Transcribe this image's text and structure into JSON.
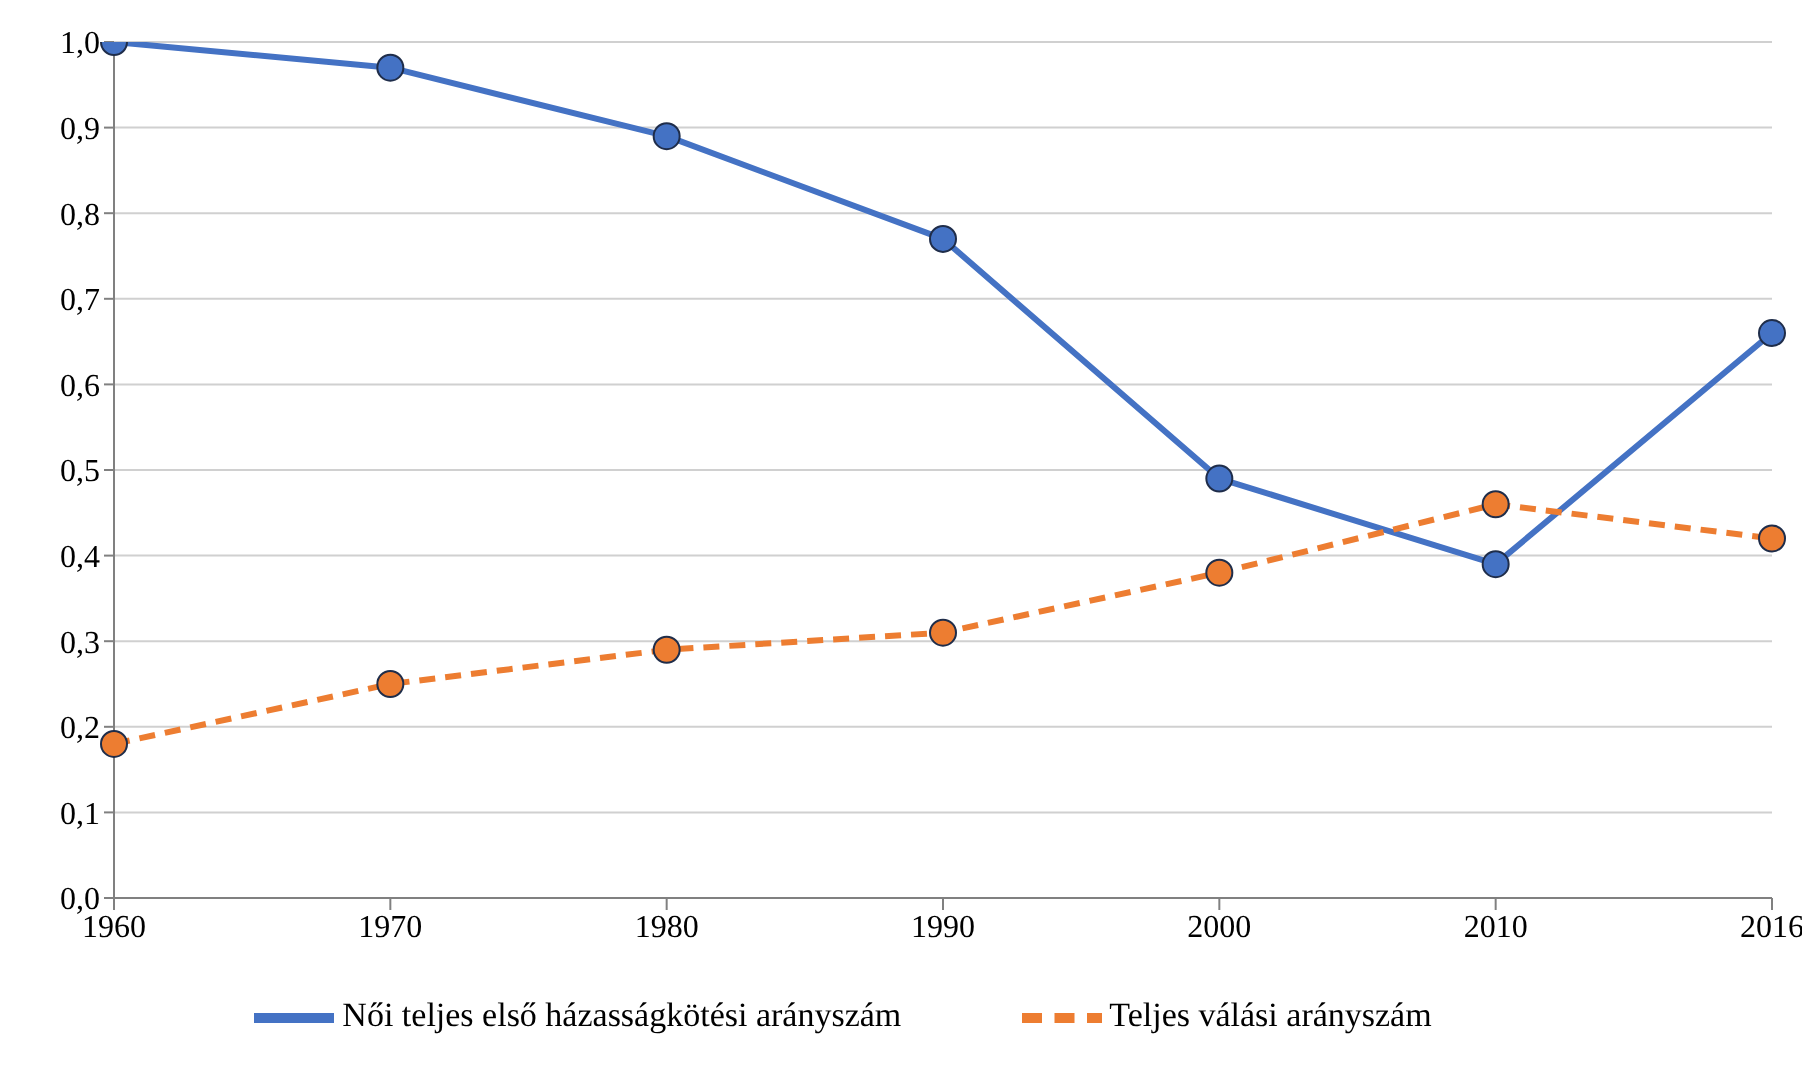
{
  "chart_data": {
    "type": "line",
    "categories": [
      "1960",
      "1970",
      "1980",
      "1990",
      "2000",
      "2010",
      "2016"
    ],
    "series": [
      {
        "name": "Női teljes első házasságkötési arányszám",
        "color": "#4472c4",
        "line_style": "solid",
        "values": [
          1.0,
          0.97,
          0.89,
          0.77,
          0.49,
          0.39,
          0.66
        ]
      },
      {
        "name": "Teljes válási arányszám",
        "color": "#ed7d31",
        "line_style": "dashed",
        "values": [
          0.18,
          0.25,
          0.29,
          0.31,
          0.38,
          0.46,
          0.42
        ]
      }
    ],
    "ylim": [
      0,
      1
    ],
    "yticks": [
      {
        "value": 0,
        "label": "0,0"
      },
      {
        "value": 0.1,
        "label": "0,1"
      },
      {
        "value": 0.2,
        "label": "0,2"
      },
      {
        "value": 0.3,
        "label": "0,3"
      },
      {
        "value": 0.4,
        "label": "0,4"
      },
      {
        "value": 0.5,
        "label": "0,5"
      },
      {
        "value": 0.6,
        "label": "0,6"
      },
      {
        "value": 0.7,
        "label": "0,7"
      },
      {
        "value": 0.8,
        "label": "0,8"
      },
      {
        "value": 0.9,
        "label": "0,9"
      },
      {
        "value": 1,
        "label": "1,0"
      }
    ],
    "grid": "y",
    "legend": "bottom",
    "marker": "circle"
  }
}
